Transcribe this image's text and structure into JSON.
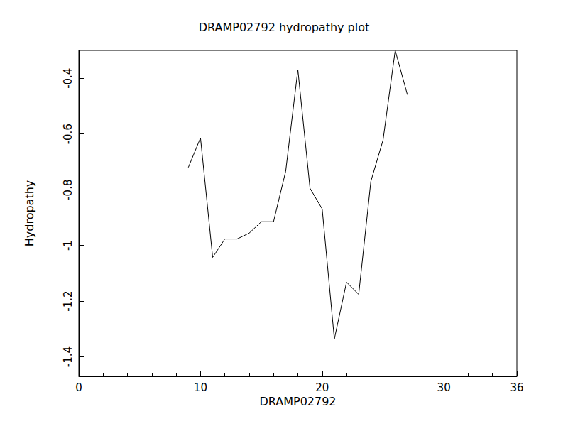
{
  "chart_data": {
    "type": "line",
    "title": "DRAMP02792 hydropathy plot",
    "x_label": "DRAMP02792",
    "y_label": "Hydropathy",
    "x": [
      9,
      10,
      11,
      12,
      13,
      14,
      15,
      16,
      17,
      18,
      19,
      20,
      21,
      22,
      23,
      24,
      25,
      26,
      27
    ],
    "values": [
      -0.72,
      -0.614,
      -1.043,
      -0.977,
      -0.977,
      -0.956,
      -0.915,
      -0.915,
      -0.734,
      -0.369,
      -0.795,
      -0.869,
      -1.336,
      -1.132,
      -1.176,
      -0.77,
      -0.622,
      -0.3,
      -0.459
    ],
    "color": "#000000",
    "marker": "none",
    "xlim": [
      0,
      36
    ],
    "xticks": [
      0,
      10,
      20,
      30
    ],
    "ylim": [
      -1.47,
      -0.3
    ],
    "yticks": [
      -1.4,
      -1.2,
      -1.0,
      -0.8,
      -0.6,
      -0.4
    ],
    "grid": false
  }
}
